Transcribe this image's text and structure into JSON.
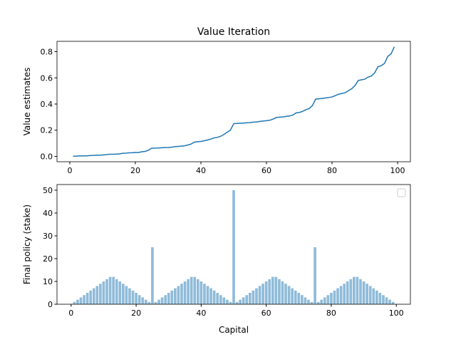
{
  "chart_data": [
    {
      "type": "line",
      "title": "Value Iteration",
      "y_label": "Value estimates",
      "color": "#1f77b4",
      "x": [
        1,
        2,
        3,
        4,
        5,
        6,
        7,
        8,
        9,
        10,
        11,
        12,
        13,
        14,
        15,
        16,
        17,
        18,
        19,
        20,
        21,
        22,
        23,
        24,
        25,
        26,
        27,
        28,
        29,
        30,
        31,
        32,
        33,
        34,
        35,
        36,
        37,
        38,
        39,
        40,
        41,
        42,
        43,
        44,
        45,
        46,
        47,
        48,
        49,
        50,
        51,
        52,
        53,
        54,
        55,
        56,
        57,
        58,
        59,
        60,
        61,
        62,
        63,
        64,
        65,
        66,
        67,
        68,
        69,
        70,
        71,
        72,
        73,
        74,
        75,
        76,
        77,
        78,
        79,
        80,
        81,
        82,
        83,
        84,
        85,
        86,
        87,
        88,
        89,
        90,
        91,
        92,
        93,
        94,
        95,
        96,
        97,
        98,
        99
      ],
      "values": [
        0.001,
        0.002,
        0.003,
        0.004,
        0.004,
        0.006,
        0.007,
        0.009,
        0.009,
        0.011,
        0.013,
        0.016,
        0.016,
        0.017,
        0.018,
        0.023,
        0.024,
        0.027,
        0.028,
        0.03,
        0.03,
        0.035,
        0.038,
        0.047,
        0.0625,
        0.063,
        0.064,
        0.066,
        0.067,
        0.068,
        0.07,
        0.074,
        0.076,
        0.078,
        0.081,
        0.087,
        0.094,
        0.109,
        0.112,
        0.114,
        0.119,
        0.125,
        0.132,
        0.141,
        0.145,
        0.153,
        0.167,
        0.184,
        0.2,
        0.25,
        0.2515,
        0.253,
        0.2545,
        0.257,
        0.258,
        0.262,
        0.263,
        0.267,
        0.27,
        0.2725,
        0.276,
        0.285,
        0.297,
        0.2995,
        0.301,
        0.3055,
        0.3085,
        0.315,
        0.332,
        0.3355,
        0.344,
        0.356,
        0.365,
        0.388,
        0.4375,
        0.44,
        0.443,
        0.4465,
        0.45,
        0.454,
        0.464,
        0.475,
        0.481,
        0.486,
        0.502,
        0.517,
        0.541,
        0.58,
        0.585,
        0.59,
        0.606,
        0.614,
        0.638,
        0.685,
        0.693,
        0.71,
        0.764,
        0.783,
        0.837
      ],
      "xlim": [
        -3.9,
        103.9
      ],
      "xticks": [
        0,
        20,
        40,
        60,
        80,
        100
      ],
      "ylim": [
        -0.041,
        0.879
      ],
      "yticks": [
        {
          "value": 0,
          "label": "0.0"
        },
        {
          "value": 0.2,
          "label": "0.2"
        },
        {
          "value": 0.4,
          "label": "0.4"
        },
        {
          "value": 0.6,
          "label": "0.6"
        },
        {
          "value": 0.8,
          "label": "0.8"
        }
      ]
    },
    {
      "type": "bar",
      "x_label": "Capital",
      "y_label": "Final policy (stake)",
      "color": "#8fbbd9",
      "x": [
        1,
        2,
        3,
        4,
        5,
        6,
        7,
        8,
        9,
        10,
        11,
        12,
        13,
        14,
        15,
        16,
        17,
        18,
        19,
        20,
        21,
        22,
        23,
        24,
        25,
        26,
        27,
        28,
        29,
        30,
        31,
        32,
        33,
        34,
        35,
        36,
        37,
        38,
        39,
        40,
        41,
        42,
        43,
        44,
        45,
        46,
        47,
        48,
        49,
        50,
        51,
        52,
        53,
        54,
        55,
        56,
        57,
        58,
        59,
        60,
        61,
        62,
        63,
        64,
        65,
        66,
        67,
        68,
        69,
        70,
        71,
        72,
        73,
        74,
        75,
        76,
        77,
        78,
        79,
        80,
        81,
        82,
        83,
        84,
        85,
        86,
        87,
        88,
        89,
        90,
        91,
        92,
        93,
        94,
        95,
        96,
        97,
        98,
        99
      ],
      "values": [
        1,
        2,
        3,
        4,
        5,
        6,
        7,
        8,
        9,
        10,
        11,
        12,
        12,
        11,
        10,
        9,
        8,
        7,
        6,
        5,
        4,
        3,
        2,
        1,
        25,
        1,
        2,
        3,
        4,
        5,
        6,
        7,
        8,
        9,
        10,
        11,
        12,
        12,
        11,
        10,
        9,
        8,
        7,
        6,
        5,
        4,
        3,
        2,
        1,
        50,
        1,
        2,
        3,
        4,
        5,
        6,
        7,
        8,
        9,
        10,
        11,
        12,
        12,
        11,
        10,
        9,
        8,
        7,
        6,
        5,
        4,
        3,
        2,
        1,
        25,
        1,
        2,
        3,
        4,
        5,
        6,
        7,
        8,
        9,
        10,
        11,
        12,
        12,
        11,
        10,
        9,
        8,
        7,
        6,
        5,
        4,
        3,
        2,
        1
      ],
      "xlim": [
        -4.34,
        104.34
      ],
      "xticks": [
        0,
        20,
        40,
        60,
        80,
        100
      ],
      "ylim": [
        0,
        52.5
      ],
      "yticks": [
        0,
        10,
        20,
        30,
        40,
        50
      ]
    }
  ]
}
